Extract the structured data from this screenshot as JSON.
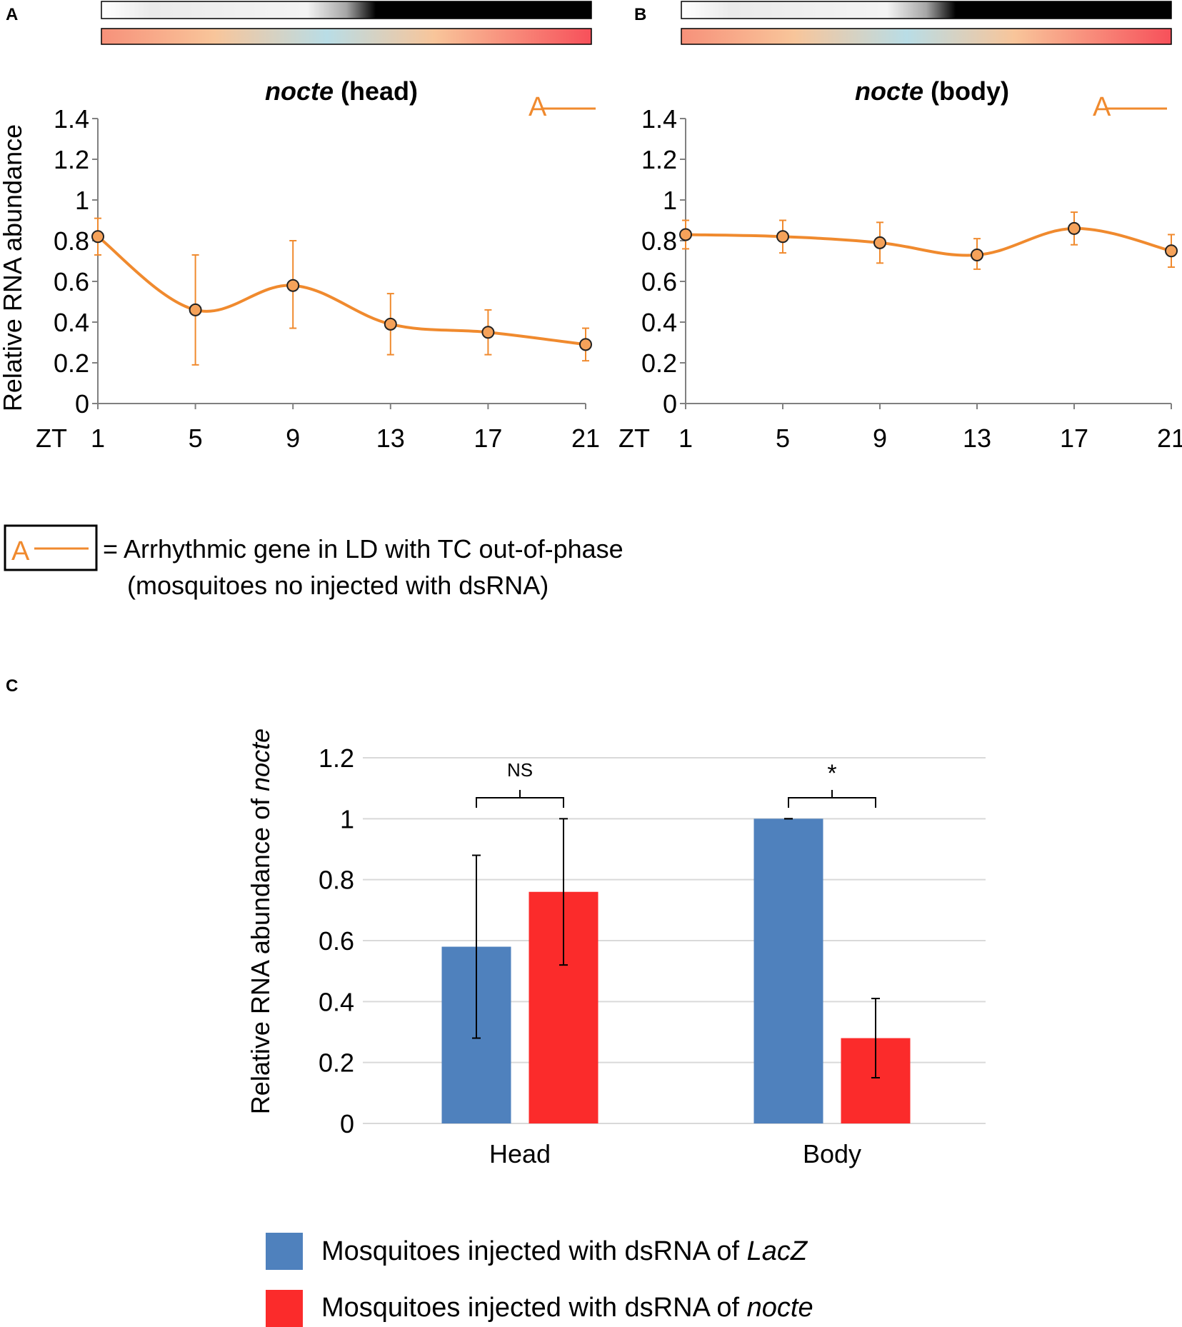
{
  "colors": {
    "line": "#f08a2e",
    "marker_fill": "#f5a25a",
    "marker_stroke": "#222222",
    "blue_bar": "#4f81bd",
    "red_bar": "#fb2b2b",
    "grid": "#d9d9d9",
    "axis": "#808080"
  },
  "legend_top": {
    "symbol": "A",
    "text_line1": "= Arrhythmic gene in LD with TC out-of-phase",
    "text_line2": "(mosquitoes no injected with dsRNA)"
  },
  "legend_bottom": {
    "items": [
      {
        "prefix": "Mosquitoes injected with dsRNA of ",
        "italic": "LacZ",
        "color": "#4f81bd"
      },
      {
        "prefix": "Mosquitoes injected with dsRNA of ",
        "italic": "nocte",
        "color": "#fb2b2b"
      }
    ]
  },
  "chart_data": [
    {
      "panel": "A",
      "type": "line",
      "title_italic": "nocte",
      "title_rest": " (head)",
      "marker_label": "A",
      "xlabel_prefix": "ZT",
      "ylabel": "Relative RNA abundance",
      "x": [
        1,
        5,
        9,
        13,
        17,
        21
      ],
      "x_ticks": [
        "1",
        "5",
        "9",
        "13",
        "17",
        "21"
      ],
      "ylim": [
        0,
        1.4
      ],
      "y_ticks": [
        "0",
        "0.2",
        "0.4",
        "0.6",
        "0.8",
        "1",
        "1.2",
        "1.4"
      ],
      "series": [
        {
          "name": "A",
          "values": [
            0.82,
            0.46,
            0.58,
            0.39,
            0.35,
            0.29
          ],
          "err_up": [
            0.09,
            0.27,
            0.22,
            0.15,
            0.11,
            0.08
          ],
          "err_down": [
            0.09,
            0.27,
            0.21,
            0.15,
            0.11,
            0.08
          ]
        }
      ]
    },
    {
      "panel": "B",
      "type": "line",
      "title_italic": "nocte",
      "title_rest": " (body)",
      "marker_label": "A",
      "xlabel_prefix": "ZT",
      "ylabel": "",
      "x": [
        1,
        5,
        9,
        13,
        17,
        21
      ],
      "x_ticks": [
        "1",
        "5",
        "9",
        "13",
        "17",
        "21"
      ],
      "ylim": [
        0,
        1.4
      ],
      "y_ticks": [
        "0",
        "0.2",
        "0.4",
        "0.6",
        "0.8",
        "1",
        "1.2",
        "1.4"
      ],
      "series": [
        {
          "name": "A",
          "values": [
            0.83,
            0.82,
            0.79,
            0.73,
            0.86,
            0.75
          ],
          "err_up": [
            0.07,
            0.08,
            0.1,
            0.08,
            0.08,
            0.08
          ],
          "err_down": [
            0.07,
            0.08,
            0.1,
            0.07,
            0.08,
            0.08
          ]
        }
      ]
    },
    {
      "panel": "C",
      "type": "bar",
      "ylabel_prefix": "Relative RNA abundance of ",
      "ylabel_italic": "nocte",
      "categories": [
        "Head",
        "Body"
      ],
      "ylim": [
        0,
        1.2
      ],
      "y_ticks": [
        "0",
        "0.2",
        "0.4",
        "0.6",
        "0.8",
        "1",
        "1.2"
      ],
      "series": [
        {
          "name": "Mosquitoes injected with dsRNA of LacZ",
          "values": [
            0.58,
            1.0
          ],
          "err": [
            0.3,
            0.0
          ]
        },
        {
          "name": "Mosquitoes injected with dsRNA of nocte",
          "values": [
            0.76,
            0.28
          ],
          "err": [
            0.24,
            0.13
          ]
        }
      ],
      "annotations": [
        {
          "category": "Head",
          "text": "NS"
        },
        {
          "category": "Body",
          "text": "*"
        }
      ]
    }
  ]
}
